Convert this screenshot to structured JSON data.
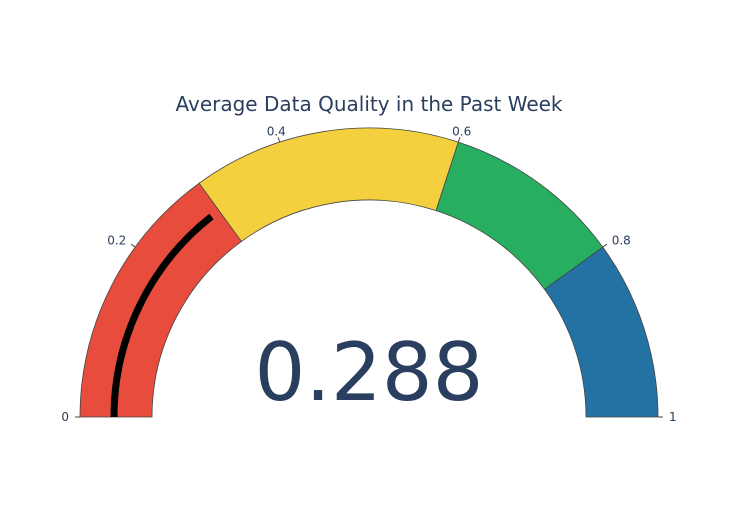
{
  "chart_data": {
    "type": "gauge",
    "title": "Average Data Quality in the Past Week",
    "value": 0.288,
    "value_label": "0.288",
    "range": [
      0,
      1
    ],
    "ticks": [
      {
        "value": 0,
        "label": "0"
      },
      {
        "value": 0.2,
        "label": "0.2"
      },
      {
        "value": 0.4,
        "label": "0.4"
      },
      {
        "value": 0.6,
        "label": "0.6"
      },
      {
        "value": 0.8,
        "label": "0.8"
      },
      {
        "value": 1,
        "label": "1"
      }
    ],
    "steps": [
      {
        "range": [
          0,
          0.3
        ],
        "color": "#e74c3c"
      },
      {
        "range": [
          0.3,
          0.6
        ],
        "color": "#f4d03f"
      },
      {
        "range": [
          0.6,
          0.8
        ],
        "color": "#27ae60"
      },
      {
        "range": [
          0.8,
          1
        ],
        "color": "#2471a3"
      }
    ],
    "bar_color": "#000000"
  }
}
